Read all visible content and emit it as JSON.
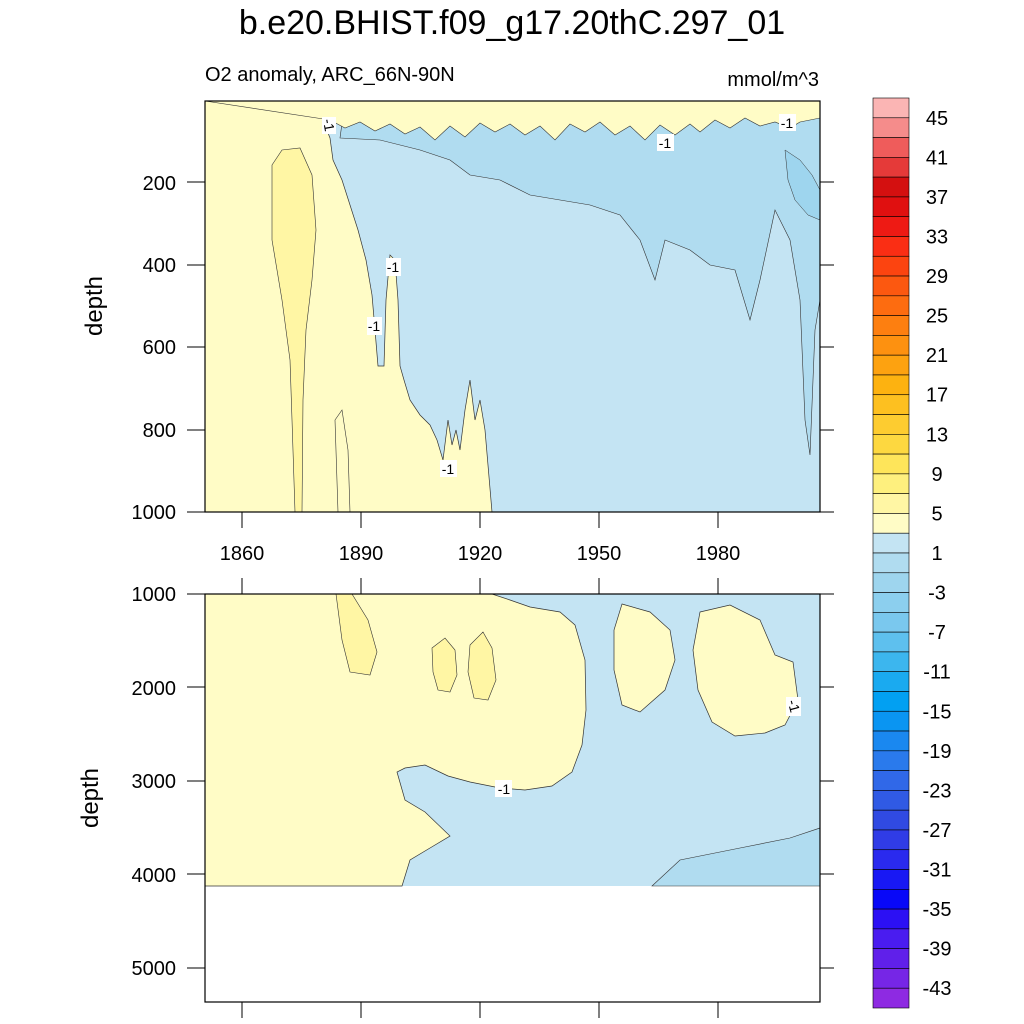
{
  "chart_data": [
    {
      "type": "heatmap",
      "panel": "upper",
      "title": "b.e20.BHIST.f09_g17.20thC.297_01",
      "left_string": "O2 anomaly, ARC_66N-90N",
      "right_string": "mmol/m^3",
      "ylabel": "depth",
      "xlim": [
        1850,
        2005
      ],
      "ylim": [
        1000,
        0
      ],
      "x_ticks": [
        "1860",
        "1890",
        "1920",
        "1950",
        "1980"
      ],
      "y_ticks": [
        "200",
        "400",
        "600",
        "800",
        "1000"
      ],
      "contour_labels": [
        "-1",
        "-1",
        "-1",
        "-1",
        "-1",
        "-1",
        "-1"
      ],
      "regions": [
        {
          "level": "1",
          "description": "positive anomaly 0 to 1, surface to 1000 m, before ~1923"
        },
        {
          "level": "-1",
          "description": "anomaly -1 to -3, after ~1880, deepening to 1000 m by 1923"
        },
        {
          "level": "-3",
          "description": "anomaly -3 to -5, upper 300 m after 1890, deeper patches after 1975"
        }
      ]
    },
    {
      "type": "heatmap",
      "panel": "lower",
      "ylabel": "depth",
      "xlim": [
        1850,
        2005
      ],
      "ylim": [
        5400,
        1000
      ],
      "y_ticks": [
        "1000",
        "2000",
        "3000",
        "4000",
        "5000"
      ],
      "contour_labels": [
        "-1",
        "-1"
      ],
      "regions": [
        {
          "level": "1",
          "description": "positive anomaly 1000-4100 m before ~1900, mid-depth lobes"
        },
        {
          "level": "-1",
          "description": "anomaly -1 to -3 over most of the later period"
        },
        {
          "level": "-3",
          "description": "weak band near 4000 m after ~1962"
        }
      ]
    }
  ],
  "colorbar": {
    "labels": [
      "45",
      "41",
      "37",
      "33",
      "29",
      "25",
      "21",
      "17",
      "13",
      "9",
      "5",
      "1",
      "-3",
      "-7",
      "-11",
      "-15",
      "-19",
      "-23",
      "-27",
      "-31",
      "-35",
      "-39",
      "-43"
    ],
    "colors": [
      "#fbb5b4",
      "#f58c8b",
      "#ef5c5b",
      "#e53a39",
      "#d41010",
      "#e01010",
      "#ee1a14",
      "#fa2e14",
      "#fc4410",
      "#fc5810",
      "#fd6c10",
      "#fd7f10",
      "#fd9110",
      "#fda210",
      "#fdb210",
      "#fdc020",
      "#fdcc30",
      "#fdd840",
      "#fee55a",
      "#fef07e",
      "#fff6a4",
      "#fffcc6",
      "#c4e4f3",
      "#b0dcf0",
      "#9ed5ee",
      "#8ccfee",
      "#7ac8ee",
      "#5ec0ee",
      "#3cb6ee",
      "#1aaaf0",
      "#02a0f2",
      "#0a95f2",
      "#1a88f0",
      "#2a7aec",
      "#3068e8",
      "#305ae4",
      "#304ae2",
      "#303ce6",
      "#2a2aee",
      "#1818f4",
      "#0808f8",
      "#2c10f4",
      "#4a1cf0",
      "#6020ea",
      "#7626e6",
      "#8e2ae2"
    ]
  }
}
